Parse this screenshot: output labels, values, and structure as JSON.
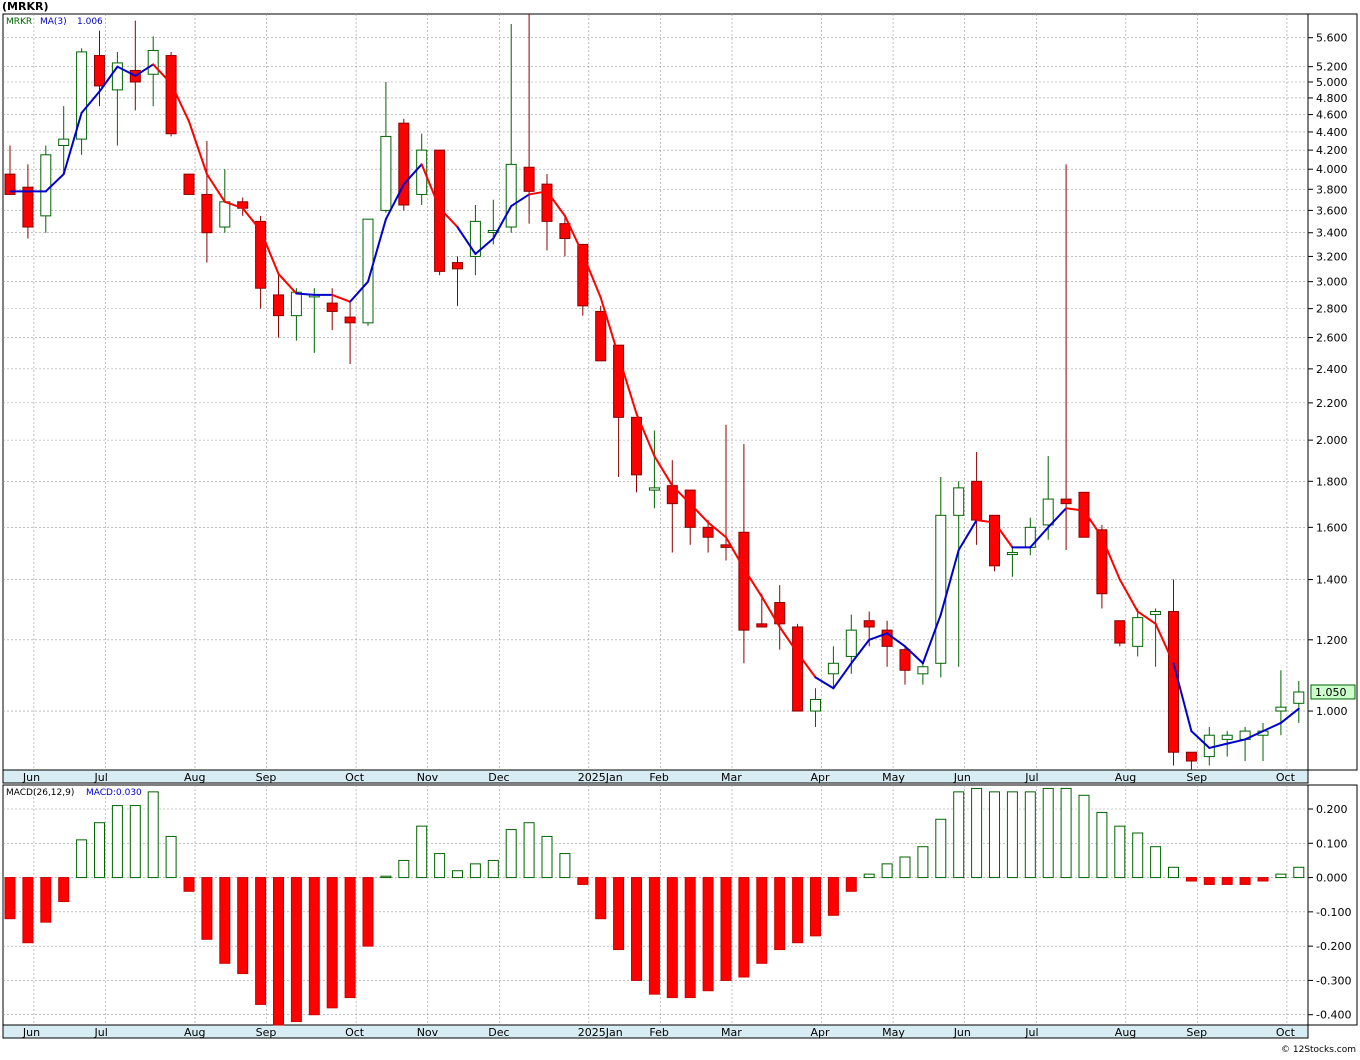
{
  "title": "(MRKR)",
  "credit": "© 12Stocks.com",
  "chart_data": [
    {
      "type": "candlestick",
      "symbol_label": "MRKR",
      "ma_label": "MA(3)",
      "ma_value": "1.006",
      "last_price_label": "1.050",
      "scale": "log",
      "ylim": [
        0.86,
        5.95
      ],
      "y_ticks": [
        1.0,
        1.2,
        1.4,
        1.6,
        1.8,
        2.0,
        2.2,
        2.4,
        2.6,
        2.8,
        3.0,
        3.2,
        3.4,
        3.6,
        3.8,
        4.0,
        4.2,
        4.4,
        4.6,
        4.8,
        5.0,
        5.2,
        5.6
      ],
      "y_tick_labels": [
        "1.000",
        "1.200",
        "1.400",
        "1.600",
        "1.800",
        "2.000",
        "2.200",
        "2.400",
        "2.600",
        "2.800",
        "3.000",
        "3.200",
        "3.400",
        "3.600",
        "3.800",
        "4.000",
        "4.200",
        "4.400",
        "4.600",
        "4.800",
        "5.000",
        "5.200",
        "5.600"
      ],
      "x_month_labels": [
        "Jun",
        "Jul",
        "Aug",
        "Sep",
        "Oct",
        "Nov",
        "Dec",
        "2025Jan",
        "Feb",
        "Mar",
        "Apr",
        "May",
        "Jun",
        "Jul",
        "Aug",
        "Sep",
        "Oct"
      ],
      "x_month_index": [
        1,
        5,
        10,
        14,
        19,
        23,
        27,
        32,
        36,
        40,
        45,
        49,
        53,
        57,
        62,
        66,
        71
      ],
      "colors": {
        "up": "#ffffff",
        "up_stroke": "#006400",
        "down": "#ff0000",
        "down_stroke": "#8b0000",
        "ma_up": "#0000cc",
        "ma_down": "#ff0000",
        "grid": "#999999"
      },
      "candles": [
        {
          "o": 3.95,
          "h": 4.25,
          "l": 3.75,
          "c": 3.75
        },
        {
          "o": 3.82,
          "h": 4.05,
          "l": 3.35,
          "c": 3.45
        },
        {
          "o": 3.55,
          "h": 4.25,
          "l": 3.4,
          "c": 4.15
        },
        {
          "o": 4.25,
          "h": 4.7,
          "l": 3.95,
          "c": 4.32
        },
        {
          "o": 4.32,
          "h": 5.45,
          "l": 4.15,
          "c": 5.4
        },
        {
          "o": 5.35,
          "h": 5.7,
          "l": 4.7,
          "c": 4.95
        },
        {
          "o": 4.9,
          "h": 5.4,
          "l": 4.25,
          "c": 5.25
        },
        {
          "o": 5.15,
          "h": 5.85,
          "l": 4.65,
          "c": 5.0
        },
        {
          "o": 5.1,
          "h": 5.62,
          "l": 4.7,
          "c": 5.42
        },
        {
          "o": 5.35,
          "h": 5.4,
          "l": 4.35,
          "c": 4.38
        },
        {
          "o": 3.95,
          "h": 3.95,
          "l": 3.75,
          "c": 3.75
        },
        {
          "o": 3.75,
          "h": 4.3,
          "l": 3.15,
          "c": 3.4
        },
        {
          "o": 3.45,
          "h": 4.0,
          "l": 3.4,
          "c": 3.68
        },
        {
          "o": 3.68,
          "h": 3.72,
          "l": 3.55,
          "c": 3.62
        },
        {
          "o": 3.5,
          "h": 3.55,
          "l": 2.8,
          "c": 2.95
        },
        {
          "o": 2.9,
          "h": 3.05,
          "l": 2.6,
          "c": 2.75
        },
        {
          "o": 2.75,
          "h": 2.95,
          "l": 2.58,
          "c": 2.92
        },
        {
          "o": 2.9,
          "h": 2.95,
          "l": 2.5,
          "c": 2.9
        },
        {
          "o": 2.84,
          "h": 2.95,
          "l": 2.65,
          "c": 2.78
        },
        {
          "o": 2.74,
          "h": 2.85,
          "l": 2.43,
          "c": 2.7
        },
        {
          "o": 2.7,
          "h": 3.52,
          "l": 2.68,
          "c": 3.52
        },
        {
          "o": 3.6,
          "h": 5.0,
          "l": 3.58,
          "c": 4.35
        },
        {
          "o": 4.5,
          "h": 4.55,
          "l": 3.6,
          "c": 3.65
        },
        {
          "o": 3.75,
          "h": 4.38,
          "l": 3.65,
          "c": 4.2
        },
        {
          "o": 4.2,
          "h": 4.2,
          "l": 3.05,
          "c": 3.08
        },
        {
          "o": 3.15,
          "h": 3.2,
          "l": 2.82,
          "c": 3.1
        },
        {
          "o": 3.2,
          "h": 3.65,
          "l": 3.05,
          "c": 3.5
        },
        {
          "o": 3.42,
          "h": 3.7,
          "l": 3.3,
          "c": 3.42
        },
        {
          "o": 3.45,
          "h": 5.8,
          "l": 3.4,
          "c": 4.05
        },
        {
          "o": 4.02,
          "h": 5.95,
          "l": 3.48,
          "c": 3.78
        },
        {
          "o": 3.85,
          "h": 3.95,
          "l": 3.25,
          "c": 3.5
        },
        {
          "o": 3.48,
          "h": 3.55,
          "l": 3.2,
          "c": 3.35
        },
        {
          "o": 3.3,
          "h": 3.3,
          "l": 2.75,
          "c": 2.82
        },
        {
          "o": 2.78,
          "h": 2.82,
          "l": 2.45,
          "c": 2.45
        },
        {
          "o": 2.55,
          "h": 2.55,
          "l": 1.82,
          "c": 2.12
        },
        {
          "o": 2.12,
          "h": 2.12,
          "l": 1.75,
          "c": 1.83
        },
        {
          "o": 1.76,
          "h": 2.05,
          "l": 1.68,
          "c": 1.77
        },
        {
          "o": 1.78,
          "h": 1.9,
          "l": 1.5,
          "c": 1.7
        },
        {
          "o": 1.76,
          "h": 1.76,
          "l": 1.53,
          "c": 1.6
        },
        {
          "o": 1.6,
          "h": 1.63,
          "l": 1.5,
          "c": 1.56
        },
        {
          "o": 1.53,
          "h": 2.08,
          "l": 1.47,
          "c": 1.52
        },
        {
          "o": 1.58,
          "h": 1.98,
          "l": 1.13,
          "c": 1.23
        },
        {
          "o": 1.25,
          "h": 1.35,
          "l": 1.24,
          "c": 1.24
        },
        {
          "o": 1.32,
          "h": 1.38,
          "l": 1.17,
          "c": 1.25
        },
        {
          "o": 1.24,
          "h": 1.25,
          "l": 1.0,
          "c": 1.0
        },
        {
          "o": 1.0,
          "h": 1.06,
          "l": 0.96,
          "c": 1.03
        },
        {
          "o": 1.1,
          "h": 1.18,
          "l": 1.06,
          "c": 1.13
        },
        {
          "o": 1.15,
          "h": 1.28,
          "l": 1.1,
          "c": 1.23
        },
        {
          "o": 1.26,
          "h": 1.29,
          "l": 1.18,
          "c": 1.24
        },
        {
          "o": 1.23,
          "h": 1.26,
          "l": 1.12,
          "c": 1.18
        },
        {
          "o": 1.17,
          "h": 1.18,
          "l": 1.07,
          "c": 1.11
        },
        {
          "o": 1.1,
          "h": 1.13,
          "l": 1.07,
          "c": 1.12
        },
        {
          "o": 1.13,
          "h": 1.82,
          "l": 1.09,
          "c": 1.65
        },
        {
          "o": 1.65,
          "h": 1.8,
          "l": 1.12,
          "c": 1.77
        },
        {
          "o": 1.8,
          "h": 1.94,
          "l": 1.53,
          "c": 1.63
        },
        {
          "o": 1.65,
          "h": 1.65,
          "l": 1.43,
          "c": 1.45
        },
        {
          "o": 1.5,
          "h": 1.52,
          "l": 1.41,
          "c": 1.5
        },
        {
          "o": 1.52,
          "h": 1.64,
          "l": 1.49,
          "c": 1.6
        },
        {
          "o": 1.61,
          "h": 1.92,
          "l": 1.55,
          "c": 1.72
        },
        {
          "o": 1.72,
          "h": 4.05,
          "l": 1.51,
          "c": 1.7
        },
        {
          "o": 1.75,
          "h": 1.75,
          "l": 1.56,
          "c": 1.56
        },
        {
          "o": 1.59,
          "h": 1.61,
          "l": 1.3,
          "c": 1.35
        },
        {
          "o": 1.26,
          "h": 1.26,
          "l": 1.18,
          "c": 1.19
        },
        {
          "o": 1.18,
          "h": 1.3,
          "l": 1.15,
          "c": 1.27
        },
        {
          "o": 1.28,
          "h": 1.3,
          "l": 1.12,
          "c": 1.29
        },
        {
          "o": 1.29,
          "h": 1.4,
          "l": 0.87,
          "c": 0.9
        },
        {
          "o": 0.9,
          "h": 0.9,
          "l": 0.86,
          "c": 0.88
        },
        {
          "o": 0.89,
          "h": 0.96,
          "l": 0.87,
          "c": 0.94
        },
        {
          "o": 0.93,
          "h": 0.95,
          "l": 0.89,
          "c": 0.94
        },
        {
          "o": 0.93,
          "h": 0.96,
          "l": 0.88,
          "c": 0.95
        },
        {
          "o": 0.94,
          "h": 0.97,
          "l": 0.88,
          "c": 0.95
        },
        {
          "o": 1.0,
          "h": 1.11,
          "l": 0.94,
          "c": 1.01
        },
        {
          "o": 1.02,
          "h": 1.08,
          "l": 0.97,
          "c": 1.05
        }
      ],
      "ma": [
        3.78,
        3.78,
        3.78,
        3.95,
        4.62,
        4.88,
        5.2,
        5.08,
        5.23,
        4.98,
        4.52,
        3.95,
        3.68,
        3.62,
        3.42,
        3.06,
        2.91,
        2.9,
        2.9,
        2.85,
        3.0,
        3.52,
        3.85,
        4.05,
        3.62,
        3.45,
        3.22,
        3.35,
        3.64,
        3.75,
        3.78,
        3.55,
        3.22,
        2.88,
        2.48,
        2.14,
        1.92,
        1.78,
        1.7,
        1.62,
        1.56,
        1.44,
        1.34,
        1.24,
        1.16,
        1.09,
        1.06,
        1.13,
        1.2,
        1.22,
        1.18,
        1.13,
        1.28,
        1.51,
        1.63,
        1.62,
        1.52,
        1.52,
        1.6,
        1.68,
        1.67,
        1.56,
        1.4,
        1.29,
        1.25,
        1.13,
        0.95,
        0.91,
        0.92,
        0.93,
        0.95,
        0.97,
        1.006
      ],
      "ma_color_flags": [
        "u",
        "u",
        "u",
        "u",
        "u",
        "u",
        "u",
        "u",
        "u",
        "d",
        "d",
        "d",
        "d",
        "d",
        "d",
        "d",
        "d",
        "u",
        "u",
        "d",
        "u",
        "u",
        "u",
        "u",
        "d",
        "d",
        "u",
        "u",
        "u",
        "u",
        "d",
        "d",
        "d",
        "d",
        "d",
        "d",
        "d",
        "d",
        "d",
        "d",
        "d",
        "d",
        "d",
        "d",
        "d",
        "d",
        "u",
        "u",
        "u",
        "u",
        "u",
        "u",
        "u",
        "u",
        "u",
        "d",
        "d",
        "u",
        "u",
        "u",
        "d",
        "d",
        "d",
        "d",
        "d",
        "d",
        "u",
        "u",
        "u",
        "u",
        "u",
        "u",
        "u"
      ]
    },
    {
      "type": "bar",
      "label": "MACD(26,12,9)",
      "value_label": "MACD:0.030",
      "ylim": [
        -0.43,
        0.27
      ],
      "y_ticks": [
        0.2,
        0.1,
        0.0,
        -0.1,
        -0.2,
        -0.3,
        -0.4
      ],
      "y_tick_labels": [
        "0.200",
        "0.100",
        "0.000",
        "-0.100",
        "-0.200",
        "-0.300",
        "-0.400"
      ],
      "x_month_labels": [
        "Jun",
        "Jul",
        "Aug",
        "Sep",
        "Oct",
        "Nov",
        "Dec",
        "2025Jan",
        "Feb",
        "Mar",
        "Apr",
        "May",
        "Jun",
        "Jul",
        "Aug",
        "Sep",
        "Oct"
      ],
      "values": [
        -0.12,
        -0.19,
        -0.13,
        -0.07,
        0.11,
        0.16,
        0.21,
        0.21,
        0.25,
        0.12,
        -0.04,
        -0.18,
        -0.25,
        -0.28,
        -0.37,
        -0.43,
        -0.42,
        -0.4,
        -0.38,
        -0.35,
        -0.2,
        0.004,
        0.05,
        0.15,
        0.07,
        0.02,
        0.04,
        0.05,
        0.14,
        0.16,
        0.12,
        0.07,
        -0.02,
        -0.12,
        -0.21,
        -0.3,
        -0.34,
        -0.35,
        -0.35,
        -0.33,
        -0.3,
        -0.29,
        -0.25,
        -0.21,
        -0.19,
        -0.17,
        -0.11,
        -0.04,
        0.01,
        0.04,
        0.06,
        0.09,
        0.17,
        0.25,
        0.26,
        0.25,
        0.25,
        0.25,
        0.26,
        0.26,
        0.24,
        0.19,
        0.15,
        0.13,
        0.09,
        0.03,
        -0.01,
        -0.02,
        -0.02,
        -0.02,
        -0.01,
        0.01,
        0.03
      ]
    }
  ]
}
